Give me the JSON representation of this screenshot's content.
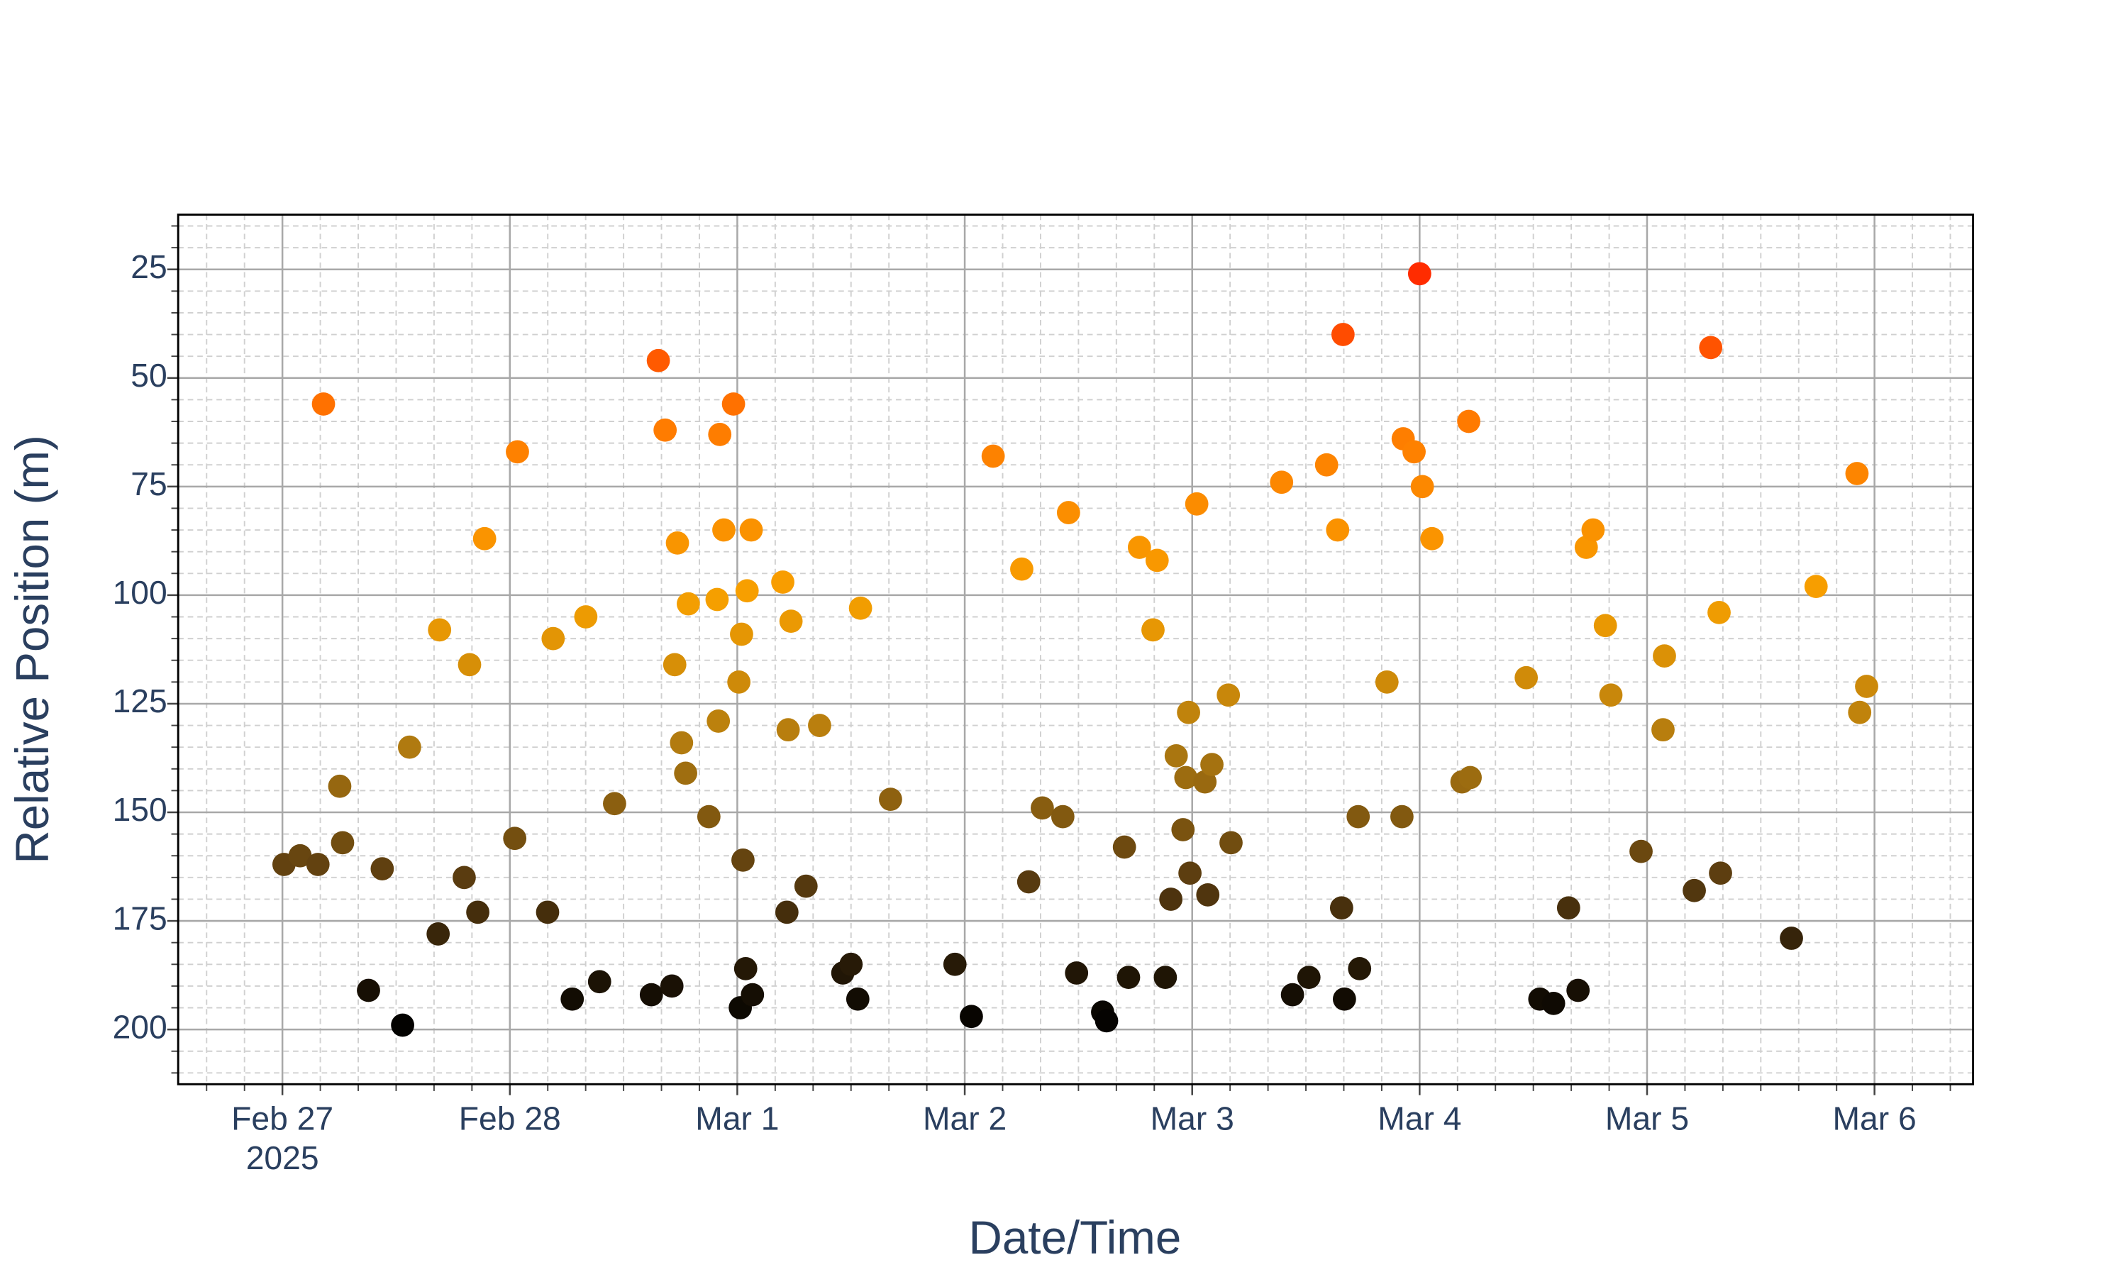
{
  "chart_data": {
    "type": "scatter",
    "x_label": "Date/Time",
    "y_label": "Relative Position (m)",
    "x": [
      "2025-02-27 00:10",
      "2025-02-27 01:52",
      "2025-02-27 03:45",
      "2025-02-27 04:20",
      "2025-02-27 06:03",
      "2025-02-27 06:21",
      "2025-02-27 09:05",
      "2025-02-27 10:32",
      "2025-02-27 12:41",
      "2025-02-27 13:25",
      "2025-02-27 16:35",
      "2025-02-27 16:26",
      "2025-02-27 19:11",
      "2025-02-27 19:45",
      "2025-02-27 20:37",
      "2025-02-27 21:20",
      "2025-02-28 00:31",
      "2025-02-28 00:48",
      "2025-02-28 03:59",
      "2025-02-28 04:34",
      "2025-02-28 06:35",
      "2025-02-28 08:01",
      "2025-02-28 09:28",
      "2025-02-28 11:03",
      "2025-02-28 14:56",
      "2025-02-28 15:40",
      "2025-02-28 16:23",
      "2025-02-28 17:06",
      "2025-02-28 17:24",
      "2025-02-28 17:41",
      "2025-02-28 18:07",
      "2025-02-28 18:33",
      "2025-02-28 18:50",
      "2025-02-28 21:00",
      "2025-02-28 22:00",
      "2025-02-28 21:52",
      "2025-02-28 22:09",
      "2025-02-28 22:35",
      "2025-02-28 23:36",
      "2025-03-01 00:10",
      "2025-03-01 00:19",
      "2025-03-01 00:27",
      "2025-03-01 00:53",
      "2025-03-01 01:02",
      "2025-03-01 00:36",
      "2025-03-01 01:28",
      "2025-03-01 01:36",
      "2025-03-01 04:48",
      "2025-03-01 05:14",
      "2025-03-01 05:22",
      "2025-03-01 05:40",
      "2025-03-01 07:15",
      "2025-03-01 08:41",
      "2025-03-01 11:08",
      "2025-03-01 12:00",
      "2025-03-01 12:43",
      "2025-03-01 13:00",
      "2025-03-01 16:10",
      "2025-03-01 22:58",
      "2025-03-02 00:42",
      "2025-03-02 03:00",
      "2025-03-02 06:01",
      "2025-03-02 06:45",
      "2025-03-02 08:11",
      "2025-03-02 10:21",
      "2025-03-02 10:57",
      "2025-03-02 11:48",
      "2025-03-02 14:33",
      "2025-03-02 14:58",
      "2025-03-02 16:51",
      "2025-03-02 17:17",
      "2025-03-02 18:26",
      "2025-03-02 19:52",
      "2025-03-02 20:18",
      "2025-03-02 21:10",
      "2025-03-02 21:45",
      "2025-03-02 22:19",
      "2025-03-02 23:02",
      "2025-03-02 23:20",
      "2025-03-02 23:37",
      "2025-03-02 23:46",
      "2025-03-03 00:29",
      "2025-03-03 01:21",
      "2025-03-03 01:39",
      "2025-03-03 02:05",
      "2025-03-03 03:49",
      "2025-03-03 04:06",
      "2025-03-03 09:26",
      "2025-03-03 10:35",
      "2025-03-03 12:19",
      "2025-03-03 14:11",
      "2025-03-03 15:21",
      "2025-03-03 15:46",
      "2025-03-03 15:55",
      "2025-03-03 16:04",
      "2025-03-03 17:40",
      "2025-03-03 17:31",
      "2025-03-03 20:33",
      "2025-03-03 22:08",
      "2025-03-03 22:16",
      "2025-03-03 23:25",
      "2025-03-04 00:00",
      "2025-03-04 00:17",
      "2025-03-04 01:18",
      "2025-03-04 04:28",
      "2025-03-04 05:11",
      "2025-03-04 05:20",
      "2025-03-04 11:15",
      "2025-03-04 12:41",
      "2025-03-04 14:08",
      "2025-03-04 15:43",
      "2025-03-04 16:43",
      "2025-03-04 17:35",
      "2025-03-04 18:18",
      "2025-03-04 19:36",
      "2025-03-04 20:11",
      "2025-03-04 23:22",
      "2025-03-05 01:50",
      "2025-03-05 01:41",
      "2025-03-05 04:59",
      "2025-03-05 06:43",
      "2025-03-05 07:36",
      "2025-03-05 07:45",
      "2025-03-05 15:14",
      "2025-03-05 17:50",
      "2025-03-05 22:09",
      "2025-03-05 22:26",
      "2025-03-05 23:10"
    ],
    "values": [
      162,
      160,
      162,
      56,
      144,
      157,
      191,
      163,
      199,
      135,
      108,
      178,
      165,
      116,
      173,
      87,
      156,
      67,
      173,
      110,
      193,
      105,
      189,
      148,
      192,
      46,
      62,
      190,
      116,
      88,
      134,
      141,
      102,
      151,
      129,
      101,
      63,
      85,
      56,
      120,
      195,
      109,
      186,
      99,
      161,
      85,
      192,
      97,
      173,
      131,
      106,
      167,
      130,
      187,
      185,
      193,
      103,
      147,
      185,
      197,
      68,
      94,
      166,
      149,
      151,
      81,
      187,
      196,
      198,
      158,
      188,
      89,
      108,
      92,
      188,
      170,
      137,
      154,
      142,
      127,
      164,
      79,
      143,
      169,
      139,
      123,
      157,
      74,
      192,
      188,
      70,
      85,
      172,
      40,
      193,
      186,
      151,
      120,
      151,
      64,
      67,
      26,
      75,
      87,
      143,
      60,
      142,
      119,
      193,
      194,
      172,
      191,
      89,
      85,
      107,
      123,
      159,
      114,
      131,
      168,
      43,
      104,
      164,
      179,
      98,
      72,
      127,
      121
    ],
    "colorscale": [
      {
        "value": 25,
        "color": "#ff2a00"
      },
      {
        "value": 60,
        "color": "#ff7a00"
      },
      {
        "value": 100,
        "color": "#f7a000"
      },
      {
        "value": 135,
        "color": "#b07a10"
      },
      {
        "value": 165,
        "color": "#5a3c10"
      },
      {
        "value": 200,
        "color": "#000000"
      }
    ],
    "xlim": [
      "2025-02-26 13:00",
      "2025-03-06 10:24"
    ],
    "xticks": [
      {
        "value": "2025-02-27",
        "label": "Feb 27\n2025"
      },
      {
        "value": "2025-02-28",
        "label": "Feb 28"
      },
      {
        "value": "2025-03-01",
        "label": "Mar 1"
      },
      {
        "value": "2025-03-02",
        "label": "Mar 2"
      },
      {
        "value": "2025-03-03",
        "label": "Mar 3"
      },
      {
        "value": "2025-03-04",
        "label": "Mar 4"
      },
      {
        "value": "2025-03-05",
        "label": "Mar 5"
      },
      {
        "value": "2025-03-06",
        "label": "Mar 6"
      }
    ],
    "ylim": [
      12.4,
      212.6
    ],
    "y_reversed": true,
    "yticks": [
      25,
      50,
      75,
      100,
      125,
      150,
      175,
      200
    ],
    "grid": true,
    "minor_grid": true,
    "minor_y_step": 5,
    "minor_x_step_hours": 4
  }
}
